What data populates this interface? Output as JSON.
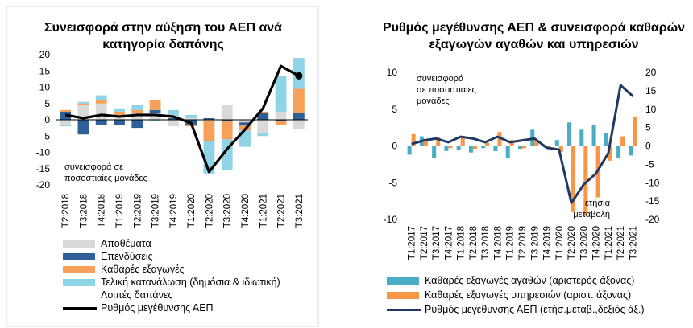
{
  "chart_data": [
    {
      "type": "bar",
      "stacked": true,
      "title": "Συνεισφορά στην αύξηση του ΑΕΠ ανά κατηγορία δαπάνης",
      "ylabel": "",
      "annotation": "συνεισφορά σε ποσοστιαίες μονάδες",
      "ylim": [
        -20,
        20
      ],
      "yticks": [
        "20",
        "15",
        "10",
        "5",
        "0",
        "-5",
        "-10",
        "-15",
        "-20"
      ],
      "categories": [
        "T2:2018",
        "T3:2018",
        "T4:2018",
        "T1:2019",
        "T2:2019",
        "T3:2019",
        "T4:2019",
        "T1:2020",
        "T2:2020",
        "T3:2020",
        "T4:2020",
        "T1:2021",
        "T2:2021",
        "T3:2021"
      ],
      "series": [
        {
          "name": "Αποθέματα",
          "color": "#d9d9d9",
          "values": [
            -1.5,
            4.5,
            5.0,
            1.5,
            2.0,
            2.0,
            -2.0,
            0.5,
            -0.5,
            4.5,
            -0.8,
            -4.0,
            2.5,
            -3.0
          ]
        },
        {
          "name": "Επενδύσεις",
          "color": "#2e5f99",
          "values": [
            2.5,
            -4.5,
            -1.5,
            -1.5,
            -2.5,
            1.0,
            0.5,
            -1.5,
            0.5,
            -0.5,
            -1.0,
            2.0,
            -0.5,
            2.0
          ]
        },
        {
          "name": "Καθαρές εξαγωγές",
          "color": "#f6a05a",
          "values": [
            0.5,
            0.5,
            1.0,
            1.0,
            1.0,
            3.0,
            0.5,
            -0.5,
            -6.0,
            -5.5,
            -1.5,
            0.5,
            -1.0,
            7.5
          ]
        },
        {
          "name": "Τελική κατανάλωση (δημόσια & ιδιωτική)",
          "color": "#8ed3e6",
          "values": [
            -0.5,
            0.5,
            1.5,
            1.0,
            1.5,
            -0.5,
            2.0,
            1.0,
            -10.0,
            -9.5,
            -5.0,
            -1.0,
            11.0,
            9.5
          ]
        }
      ],
      "extra_legend_entry": "Λοιπές δαπάνες",
      "line": {
        "name": "Ρυθμός μεγέθυνσης ΑΕΠ",
        "color": "#000000",
        "values": [
          1.5,
          0.5,
          1.5,
          1.0,
          1.5,
          1.5,
          1.0,
          -1.0,
          -16.0,
          -9.0,
          -3.0,
          3.5,
          16.5,
          13.5
        ]
      },
      "legend_position": "bottom"
    },
    {
      "type": "bar",
      "title": "Ρυθμός μεγέθυνσης ΑΕΠ & συνεισφορά καθαρών εξαγωγών αγαθών και υπηρεσιών",
      "annotation_left": "συνεισφορά σε ποσοστιαίες μονάδες",
      "annotation_right": "ετήσια μεταβολή",
      "ylim_left": [
        -10,
        10
      ],
      "ylim_right": [
        -20,
        20
      ],
      "yticks_left": [
        "10",
        "5",
        "0",
        "-5",
        "-10"
      ],
      "yticks_right": [
        "20",
        "15",
        "10",
        "5",
        "0",
        "-5",
        "-10",
        "-15",
        "-20"
      ],
      "categories": [
        "T1:2017",
        "T2:2017",
        "T3:2017",
        "T4:2017",
        "T1:2018",
        "T2:2018",
        "T3:2018",
        "T4:2018",
        "T1:2019",
        "T2:2019",
        "T3:2019",
        "T4:2019",
        "T1:2020",
        "T2:2020",
        "T3:2020",
        "T4:2020",
        "T1:2021",
        "T2:2021",
        "T3:2021"
      ],
      "series": [
        {
          "name": "Καθαρές εξαγωγές αγαθών (αριστερός άξονας)",
          "color": "#4bacc6",
          "values": [
            -1.2,
            1.3,
            -1.7,
            -0.7,
            -0.5,
            -0.9,
            -0.3,
            -0.7,
            -1.7,
            -0.4,
            2.2,
            -0.2,
            0.8,
            3.2,
            2.2,
            2.9,
            1.8,
            -1.7,
            -1.3
          ]
        },
        {
          "name": "Καθαρές εξαγωγές υπηρεσιών (αριστ. άξονας)",
          "color": "#f79646",
          "values": [
            1.6,
            0.9,
            1.2,
            -0.3,
            1.1,
            -0.4,
            0.4,
            1.9,
            0.8,
            -0.3,
            0.8,
            -0.3,
            -0.8,
            -9.0,
            -9.5,
            -7.0,
            -2.0,
            1.3,
            4.0
          ]
        }
      ],
      "line": {
        "name": "Ρυθμός μεγέθυνσης ΑΕΠ (ετήσ.μεταβ.,δεξιός άξ.)",
        "color": "#1f3864",
        "axis": "right",
        "values": [
          0.5,
          1.5,
          2.0,
          1.0,
          2.5,
          2.0,
          1.0,
          2.5,
          1.0,
          1.5,
          2.0,
          -0.5,
          -1.0,
          -15.5,
          -10.5,
          -7.5,
          -2.0,
          16.5,
          13.5
        ]
      },
      "legend_position": "bottom"
    }
  ]
}
